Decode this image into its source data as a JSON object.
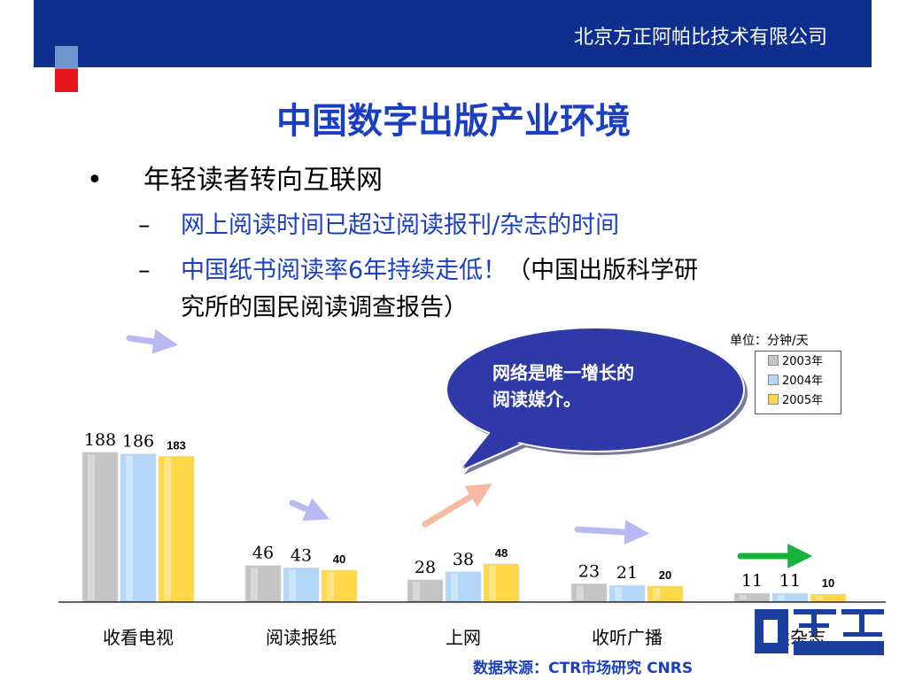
{
  "header": {
    "company": "北京方正阿帕比技术有限公司"
  },
  "slide": {
    "title": "中国数字出版产业环境",
    "bullet": "年轻读者转向互联网",
    "bullet_mark": "•",
    "dash": "–",
    "sub1": "网上阅读时间已超过阅读报刊/杂志的时间",
    "sub2_blue": "中国纸书阅读率6年持续走低！",
    "sub2_black": "（中国出版科学研",
    "sub2_cont": "究所的国民阅读调查报告）",
    "callout": [
      "网络是唯一增长的",
      "阅读媒介。"
    ],
    "source": "数据来源：CTR市场研究 CNRS"
  },
  "chart_data": {
    "type": "bar",
    "unit": "单位：分钟/天",
    "categories": [
      "收看电视",
      "阅读报纸",
      "上网",
      "收听广播",
      "阅读杂志"
    ],
    "series": [
      {
        "name": "2003年",
        "values": [
          188,
          46,
          28,
          23,
          11
        ],
        "color": "#c4c4c4"
      },
      {
        "name": "2004年",
        "values": [
          186,
          43,
          38,
          21,
          11
        ],
        "color": "#b3d7f9"
      },
      {
        "name": "2005年",
        "values": [
          183,
          40,
          48,
          20,
          10
        ],
        "color": "#ffd84a"
      }
    ],
    "ylim": [
      0,
      190
    ],
    "legend": "top-right",
    "grid": false
  },
  "colors": {
    "header_bg": "#0f2f8e",
    "title": "#1a3fc0",
    "callout_bg": "#2f3aa8"
  }
}
